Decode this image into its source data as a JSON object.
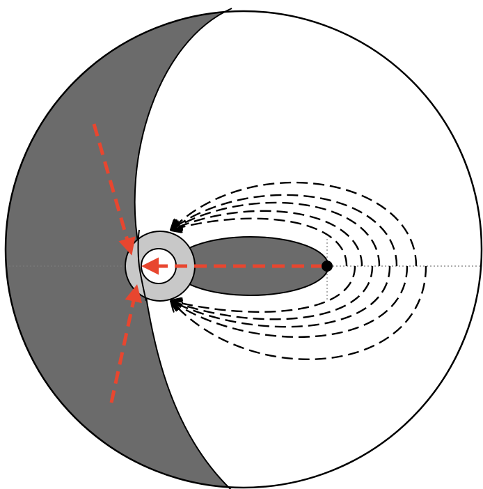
{
  "colors": {
    "background": "#ffffff",
    "outline": "#000000",
    "shaded_region": "#6b6b6b",
    "inner_ring": "#c8c8c8",
    "red_arrows": "#e8462f",
    "axis_line": "#7a7a7a"
  },
  "icons": {
    "center_marker": "filled-circle"
  }
}
